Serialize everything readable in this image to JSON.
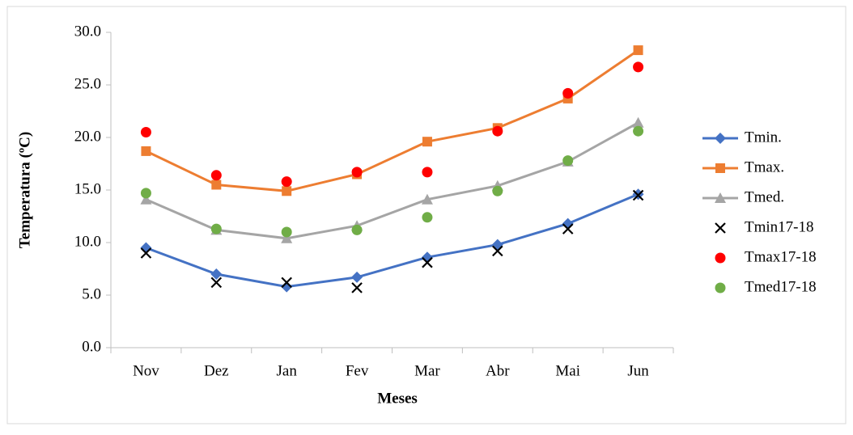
{
  "chart_data": {
    "type": "line",
    "x_label": "Meses",
    "y_label": "Temperatura (ºC)",
    "categories": [
      "Nov",
      "Dez",
      "Jan",
      "Fev",
      "Mar",
      "Abr",
      "Mai",
      "Jun"
    ],
    "ylim": [
      0,
      30
    ],
    "yticks": [
      {
        "value": 0,
        "label": "0.0"
      },
      {
        "value": 5,
        "label": "5.0"
      },
      {
        "value": 10,
        "label": "10.0"
      },
      {
        "value": 15,
        "label": "15.0"
      },
      {
        "value": 20,
        "label": "20.0"
      },
      {
        "value": 25,
        "label": "25.0"
      },
      {
        "value": 30,
        "label": "30.0"
      }
    ],
    "series": [
      {
        "name": "Tmin.",
        "color": "#4472c4",
        "marker": "diamond",
        "line": true,
        "values": [
          9.5,
          7.0,
          5.8,
          6.7,
          8.6,
          9.8,
          11.8,
          14.6
        ]
      },
      {
        "name": "Tmax.",
        "color": "#ed7d31",
        "marker": "square",
        "line": true,
        "values": [
          18.7,
          15.5,
          14.9,
          16.5,
          19.6,
          20.9,
          23.7,
          28.3
        ]
      },
      {
        "name": "Tmed.",
        "color": "#a5a5a5",
        "marker": "triangle",
        "line": true,
        "values": [
          14.1,
          11.2,
          10.4,
          11.6,
          14.1,
          15.4,
          17.7,
          21.4
        ]
      },
      {
        "name": "Tmin17-18",
        "color": "#000000",
        "marker": "x",
        "line": false,
        "values": [
          9.0,
          6.2,
          6.2,
          5.7,
          8.1,
          9.2,
          11.3,
          14.5
        ]
      },
      {
        "name": "Tmax17-18",
        "color": "#ff0000",
        "marker": "circle",
        "line": false,
        "values": [
          20.5,
          16.4,
          15.8,
          16.7,
          16.7,
          20.6,
          24.2,
          26.7
        ]
      },
      {
        "name": "Tmed17-18",
        "color": "#70ad47",
        "marker": "circle",
        "line": false,
        "values": [
          14.7,
          11.3,
          11.0,
          11.2,
          12.4,
          14.9,
          17.8,
          20.6
        ]
      }
    ],
    "legend": "right"
  }
}
